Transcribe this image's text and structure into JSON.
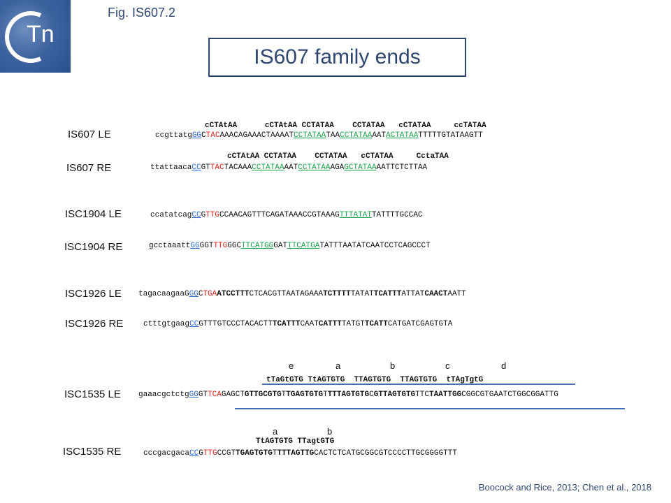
{
  "header": {
    "fig_label": "Fig. IS607.2",
    "title": "IS607 family ends",
    "logo_text": "Tn"
  },
  "rows": [
    {
      "label": "IS607 LE",
      "motifs": "cCTAtAA      cCTAtAA CCTATAA    CCTATAA   cCTATAA     ccTATAA",
      "segments": [
        {
          "t": "ccgttatg",
          "s": ""
        },
        {
          "t": "GG",
          "s": "b"
        },
        {
          "t": "C",
          "s": ""
        },
        {
          "t": "TAC",
          "s": "r"
        },
        {
          "t": "AAACAGAAACTAAAAT",
          "s": ""
        },
        {
          "t": "CCTATAA",
          "s": "g"
        },
        {
          "t": "TAA",
          "s": ""
        },
        {
          "t": "CCTATAA",
          "s": "g"
        },
        {
          "t": "AAT",
          "s": ""
        },
        {
          "t": "ACTATAA",
          "s": "g"
        },
        {
          "t": "TTTTTGTATAAGTT",
          "s": ""
        }
      ]
    },
    {
      "label": "IS607 RE",
      "motifs": "cCTAtAA CCTATAA    CCTATAA   cCTATAA     CctaTAA",
      "segments": [
        {
          "t": "ttattaaca",
          "s": ""
        },
        {
          "t": "CC",
          "s": "b"
        },
        {
          "t": "GT",
          "s": ""
        },
        {
          "t": "TAC",
          "s": "r"
        },
        {
          "t": "TACAAA",
          "s": ""
        },
        {
          "t": "CCTATAA",
          "s": "g"
        },
        {
          "t": "AAT",
          "s": ""
        },
        {
          "t": "CCTATAA",
          "s": "g"
        },
        {
          "t": "AGA",
          "s": ""
        },
        {
          "t": "GCTATAA",
          "s": "g"
        },
        {
          "t": "AATTCTCTTAA",
          "s": ""
        }
      ]
    },
    {
      "label": "ISC1904 LE",
      "segments": [
        {
          "t": "ccatatcag",
          "s": ""
        },
        {
          "t": "CC",
          "s": "b"
        },
        {
          "t": "G",
          "s": ""
        },
        {
          "t": "TTG",
          "s": "r"
        },
        {
          "t": "CCAACAGTTTCAGATAAACCGTAAAG",
          "s": ""
        },
        {
          "t": "TTTATAT",
          "s": "g"
        },
        {
          "t": "TATTTTGCCAC",
          "s": ""
        }
      ]
    },
    {
      "label": "ISC1904 RE",
      "segments": [
        {
          "t": "gcctaaatt",
          "s": ""
        },
        {
          "t": "GG",
          "s": "b"
        },
        {
          "t": "GGT",
          "s": ""
        },
        {
          "t": "TTG",
          "s": "r"
        },
        {
          "t": "GGC",
          "s": ""
        },
        {
          "t": "TTCATGG",
          "s": "g"
        },
        {
          "t": "GAT",
          "s": ""
        },
        {
          "t": "TTCATGA",
          "s": "g"
        },
        {
          "t": "TATTTAATATCAATCCTCAGCCCT",
          "s": ""
        }
      ]
    },
    {
      "label": "ISC1926 LE",
      "segments": [
        {
          "t": "tagacaagaaG",
          "s": ""
        },
        {
          "t": "GG",
          "s": "b"
        },
        {
          "t": "C",
          "s": ""
        },
        {
          "t": "TGA",
          "s": "r"
        },
        {
          "t": "ATCCTTT",
          "s": "k"
        },
        {
          "t": "CTCACGTTAATAGAAA",
          "s": ""
        },
        {
          "t": "TCTTTT",
          "s": "k"
        },
        {
          "t": "TATAT",
          "s": ""
        },
        {
          "t": "TCATTT",
          "s": "k"
        },
        {
          "t": "ATTAT",
          "s": ""
        },
        {
          "t": "CAACT",
          "s": "k"
        },
        {
          "t": "AATT",
          "s": ""
        }
      ]
    },
    {
      "label": "ISC1926 RE",
      "segments": [
        {
          "t": "ctttgtgaag",
          "s": ""
        },
        {
          "t": "CC",
          "s": "b"
        },
        {
          "t": "GTTTGTCCCTACACTT",
          "s": ""
        },
        {
          "t": "TCATTT",
          "s": "k"
        },
        {
          "t": "CAAT",
          "s": ""
        },
        {
          "t": "CATTT",
          "s": "k"
        },
        {
          "t": "TATGT",
          "s": ""
        },
        {
          "t": "TCATT",
          "s": "k"
        },
        {
          "t": "CATGATCGAGTGTA",
          "s": ""
        }
      ]
    },
    {
      "label": "ISC1535 LE",
      "letters": [
        "e",
        "a",
        "b",
        "c",
        "d"
      ],
      "motifs": "tTaGtGTG TtAGTGTG  TTAGTGTG  TTAGTGTG  tTAgTgtG",
      "segments": [
        {
          "t": "gaaacgctctg",
          "s": ""
        },
        {
          "t": "GG",
          "s": "b"
        },
        {
          "t": "GT",
          "s": ""
        },
        {
          "t": "TCA",
          "s": "r"
        },
        {
          "t": "GAGCT",
          "s": ""
        },
        {
          "t": "GTTGCGTG",
          "s": "k"
        },
        {
          "t": "T",
          "s": ""
        },
        {
          "t": "TGAGTGTG",
          "s": "k"
        },
        {
          "t": "T",
          "s": ""
        },
        {
          "t": "TTTAGTGTG",
          "s": "k"
        },
        {
          "t": "C",
          "s": ""
        },
        {
          "t": "GTTAGTGTG",
          "s": "k"
        },
        {
          "t": "TTC",
          "s": ""
        },
        {
          "t": "TAATTGG",
          "s": "k"
        },
        {
          "t": "CGGCGTGAATCTGGCGGATTG",
          "s": ""
        }
      ]
    },
    {
      "label": "ISC1535 RE",
      "letters": [
        "a",
        "b"
      ],
      "motifs": "TtAGTGTG TTagtGTG",
      "segments": [
        {
          "t": "cccgacgaca",
          "s": ""
        },
        {
          "t": "CC",
          "s": "b"
        },
        {
          "t": "G",
          "s": ""
        },
        {
          "t": "TTG",
          "s": "r"
        },
        {
          "t": "CCGT",
          "s": ""
        },
        {
          "t": "TGAGTGTG",
          "s": "k"
        },
        {
          "t": "T",
          "s": ""
        },
        {
          "t": "TTTAGTTG",
          "s": "k"
        },
        {
          "t": "CACTCTCATGCGGCGTCCCCTTGCGGGGTTT",
          "s": ""
        }
      ]
    }
  ],
  "citation": "Boocock and Rice, 2013; Chen et al., 2018"
}
